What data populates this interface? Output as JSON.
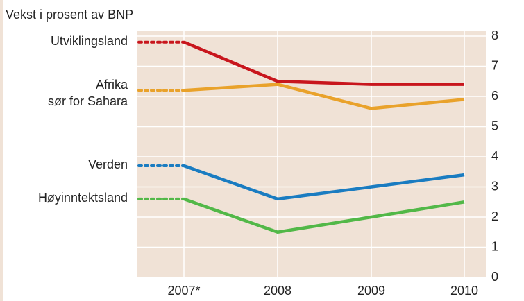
{
  "chart_data": {
    "type": "line",
    "title": "Vekst i prosent av BNP",
    "categories": [
      "2007*",
      "2008",
      "2009",
      "2010"
    ],
    "series": [
      {
        "name": "Utviklingsland",
        "color": "#c8161d",
        "values": [
          7.8,
          6.5,
          6.4,
          6.4
        ]
      },
      {
        "name": "Afrika\nsør for Sahara",
        "color": "#e9a22b",
        "values": [
          6.2,
          6.4,
          5.6,
          5.9
        ]
      },
      {
        "name": "Verden",
        "color": "#1a7cc1",
        "values": [
          3.7,
          2.6,
          3.0,
          3.4
        ]
      },
      {
        "name": "Høyinntektsland",
        "color": "#52b848",
        "values": [
          2.6,
          1.5,
          2.0,
          2.5
        ]
      }
    ],
    "ylim": [
      0,
      8
    ],
    "yticks": [
      0,
      1,
      2,
      3,
      4,
      5,
      6,
      7,
      8
    ],
    "grid": true
  }
}
